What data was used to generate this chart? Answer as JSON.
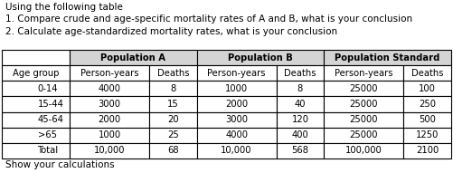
{
  "title_lines": [
    "Using the following table",
    "1. Compare crude and age-specific mortality rates of A and B, what is your conclusion",
    "2. Calculate age-standardized mortality rates, what is your conclusion"
  ],
  "footer": "Show your calculations",
  "col_headers": [
    "Age group",
    "Person-years",
    "Deaths",
    "Person-years",
    "Deaths",
    "Person-years",
    "Deaths"
  ],
  "group_headers": [
    "",
    "Population A",
    "Population B",
    "Population Standard"
  ],
  "rows": [
    [
      "0-14",
      "4000",
      "8",
      "1000",
      "8",
      "25000",
      "100"
    ],
    [
      "15-44",
      "3000",
      "15",
      "2000",
      "40",
      "25000",
      "250"
    ],
    [
      "45-64",
      "2000",
      "20",
      "3000",
      "120",
      "25000",
      "500"
    ],
    [
      ">65",
      "1000",
      "25",
      "4000",
      "400",
      "25000",
      "1250"
    ],
    [
      "Total",
      "10,000",
      "68",
      "10,000",
      "568",
      "100,000",
      "2100"
    ]
  ],
  "bg_color": "#ffffff",
  "header_bg": "#d4d4d4",
  "border_color": "#000000",
  "text_color": "#000000",
  "title_fontsize": 7.5,
  "table_fontsize": 7.2,
  "col_props": [
    0.135,
    0.158,
    0.095,
    0.158,
    0.095,
    0.158,
    0.095
  ]
}
